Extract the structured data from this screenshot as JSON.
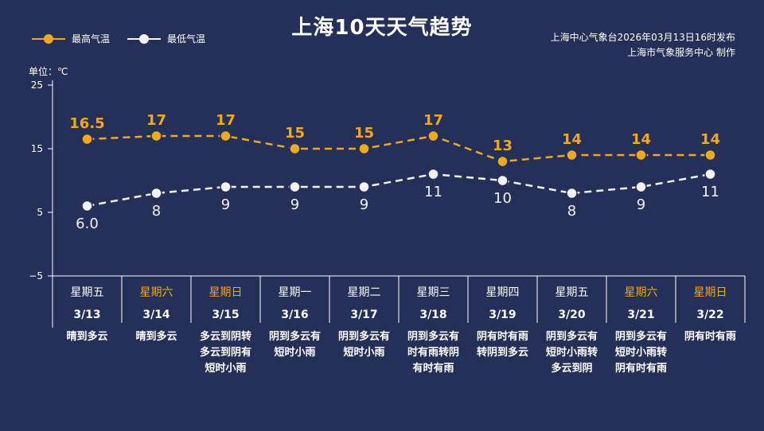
{
  "title": "上海10天天气趋势",
  "source_line1": "上海中心气象台2026年03月13日16时发布",
  "source_line2": "上海市气象服务中心  制作",
  "unit_label": "单位：℃",
  "colors": {
    "background": "#243057",
    "high": "#f0a91f",
    "low": "#f2f2f2",
    "weekend": "#f0a91f",
    "text": "#ffffff",
    "grid": "#ffffff"
  },
  "legend": {
    "high": "最高气温",
    "low": "最低气温"
  },
  "chart_data": {
    "type": "line",
    "ylim": [
      -5,
      25
    ],
    "yticks": [
      "25",
      "15",
      "5",
      "−5"
    ],
    "ytick_values": [
      25,
      15,
      5,
      -5
    ],
    "grid": false,
    "legend_position": "top-left",
    "categories": [
      "3/13",
      "3/14",
      "3/15",
      "3/16",
      "3/17",
      "3/18",
      "3/19",
      "3/20",
      "3/21",
      "3/22"
    ],
    "weekdays": [
      "星期五",
      "星期六",
      "星期日",
      "星期一",
      "星期二",
      "星期三",
      "星期四",
      "星期五",
      "星期六",
      "星期日"
    ],
    "weekend_flags": [
      false,
      true,
      true,
      false,
      false,
      false,
      false,
      false,
      true,
      true
    ],
    "series": [
      {
        "name": "最高气温",
        "values": [
          16.5,
          17,
          17,
          15,
          15,
          17,
          13,
          14,
          14,
          14
        ],
        "labels": [
          "16.5",
          "17",
          "17",
          "15",
          "15",
          "17",
          "13",
          "14",
          "14",
          "14"
        ]
      },
      {
        "name": "最低气温",
        "values": [
          6.0,
          8,
          9,
          9,
          9,
          11,
          10,
          8,
          9,
          11
        ],
        "labels": [
          "6.0",
          "8",
          "9",
          "9",
          "9",
          "11",
          "10",
          "8",
          "9",
          "11"
        ]
      }
    ],
    "weather": [
      [
        "晴到多云"
      ],
      [
        "晴到多云"
      ],
      [
        "多云到阴转",
        "多云到阴有",
        "短时小雨"
      ],
      [
        "阴到多云有",
        "短时小雨"
      ],
      [
        "阴到多云有",
        "短时小雨"
      ],
      [
        "阴到多云有",
        "时有雨转阴",
        "有时有雨"
      ],
      [
        "阴有时有雨",
        "转阴到多云"
      ],
      [
        "阴到多云有",
        "短时小雨转",
        "多云到阴"
      ],
      [
        "阴到多云有",
        "短时小雨转",
        "阴有时有雨"
      ],
      [
        "阴有时有雨"
      ]
    ]
  }
}
